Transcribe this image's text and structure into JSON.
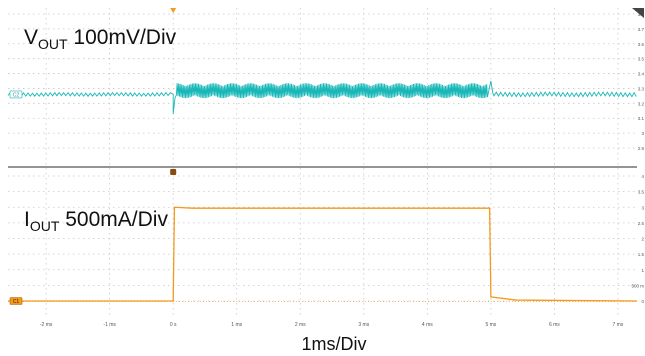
{
  "chart_data": {
    "type": "line",
    "time_axis": {
      "tick_labels": [
        "-2 ms",
        "-1 ms",
        "0 s",
        "1 ms",
        "2 ms",
        "3 ms",
        "4 ms",
        "5 ms",
        "6 ms",
        "7 ms"
      ],
      "range_ms": [
        -2.6,
        7.3
      ],
      "annotation": "1ms/Div"
    },
    "grid": true,
    "colors": {
      "vout": "#19b7b7",
      "iout": "#f39a1e",
      "grid": "#c8c8c8",
      "divider": "#555555"
    },
    "channels": [
      {
        "tag": "C2",
        "annotation_main": "V",
        "annotation_sub": "OUT",
        "annotation_rest": " 100mV/Div",
        "right_scale": [
          "3.8",
          "3.7",
          "3.6",
          "3.5",
          "3.4",
          "3.3",
          "3.2",
          "3.1",
          "3",
          "2.9"
        ],
        "points_ms_volts": [
          [
            -2.6,
            3.26
          ],
          [
            0.0,
            3.26
          ],
          [
            0.0,
            3.13
          ],
          [
            0.05,
            3.28
          ],
          [
            4.95,
            3.285
          ],
          [
            5.0,
            3.35
          ],
          [
            5.05,
            3.26
          ],
          [
            7.3,
            3.26
          ]
        ],
        "ripple_volts_before": 0.012,
        "ripple_volts_during": 0.05,
        "ripple_volts_after": 0.015
      },
      {
        "tag": "C1",
        "annotation_main": "I",
        "annotation_sub": "OUT",
        "annotation_rest": " 500mA/Div",
        "right_scale": [
          "4",
          "3.5",
          "3",
          "2.5",
          "2",
          "1.5",
          "1",
          "500 m",
          "0"
        ],
        "points_ms_amps": [
          [
            -2.6,
            0.0
          ],
          [
            0.0,
            0.0
          ],
          [
            0.02,
            3.0
          ],
          [
            0.3,
            2.97
          ],
          [
            4.98,
            2.97
          ],
          [
            5.0,
            0.13
          ],
          [
            5.4,
            0.03
          ],
          [
            7.3,
            0.0
          ]
        ]
      }
    ]
  }
}
